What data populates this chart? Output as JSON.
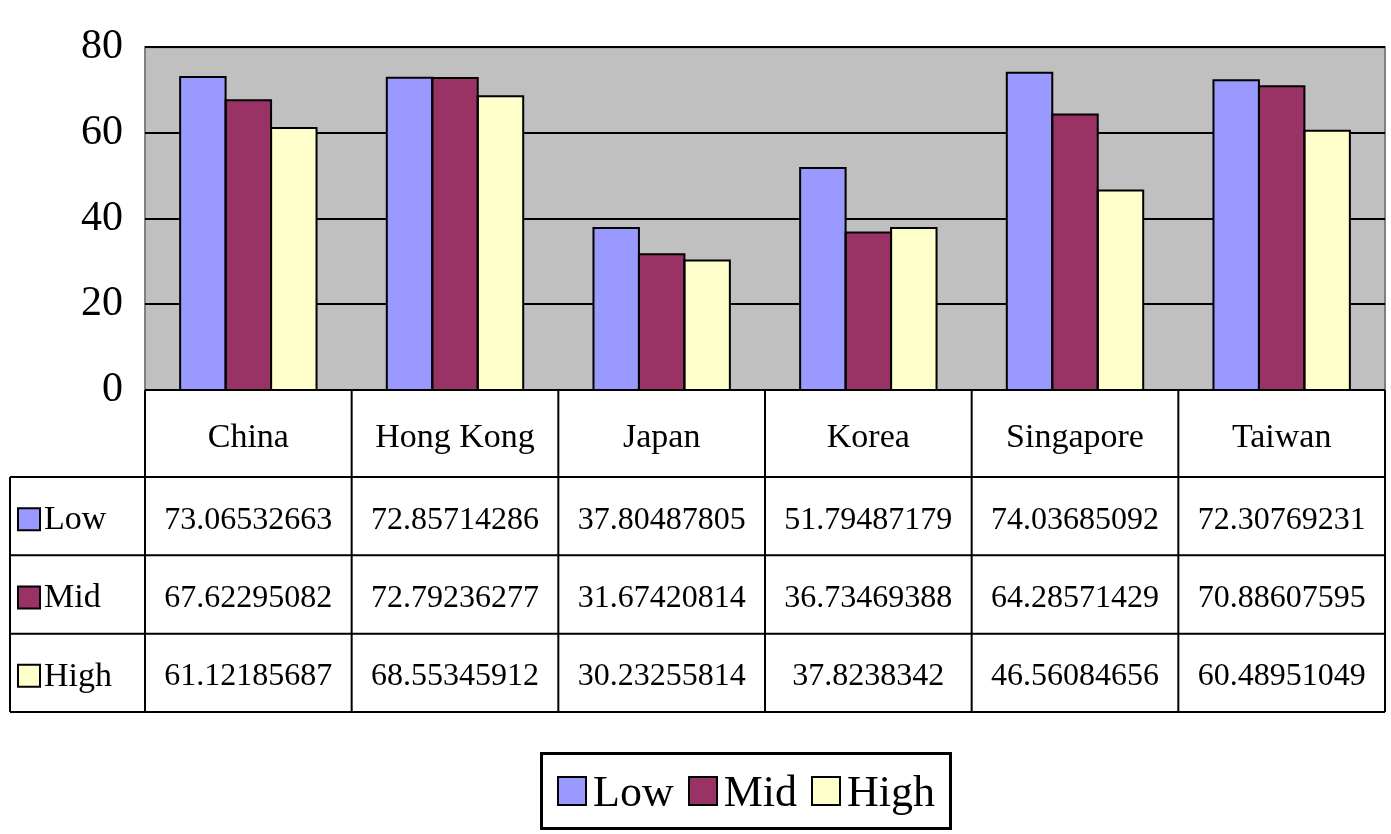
{
  "chart_data": {
    "type": "bar",
    "categories": [
      "China",
      "Hong Kong",
      "Japan",
      "Korea",
      "Singapore",
      "Taiwan"
    ],
    "series": [
      {
        "name": "Low",
        "color": "#9999ff",
        "values": [
          73.06532663,
          72.85714286,
          37.80487805,
          51.79487179,
          74.03685092,
          72.30769231
        ]
      },
      {
        "name": "Mid",
        "color": "#993366",
        "values": [
          67.62295082,
          72.79236277,
          31.67420814,
          36.73469388,
          64.28571429,
          70.88607595
        ]
      },
      {
        "name": "High",
        "color": "#ffffcc",
        "values": [
          61.12185687,
          68.55345912,
          30.23255814,
          37.8238342,
          46.56084656,
          60.48951049
        ]
      }
    ],
    "ylim": [
      0,
      80
    ],
    "yticks": [
      0,
      20,
      40,
      60,
      80
    ],
    "grid": "y",
    "legend": "bottom",
    "data_labels": true
  }
}
